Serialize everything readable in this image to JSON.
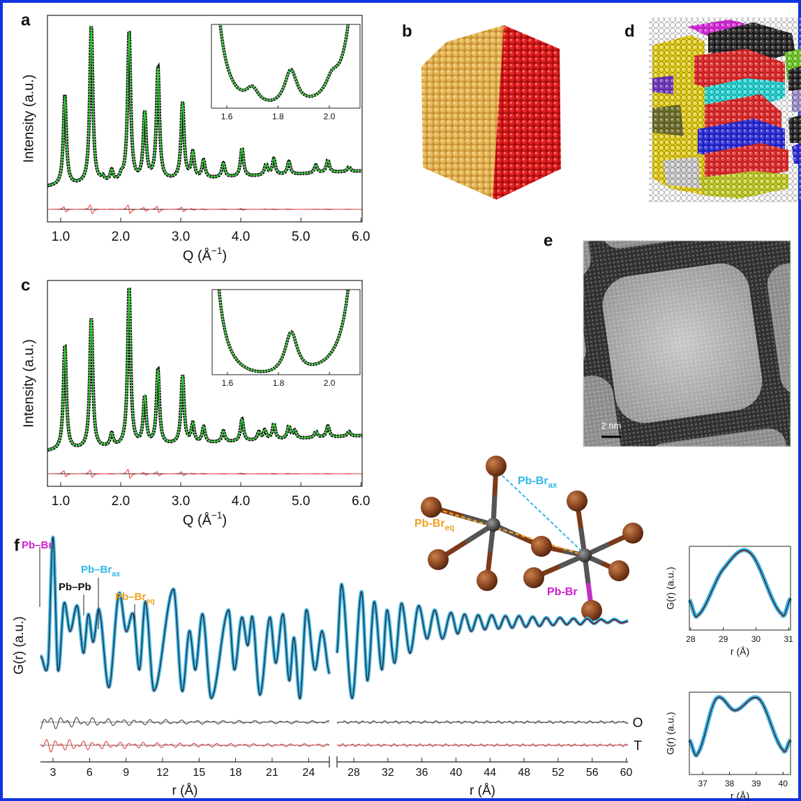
{
  "panels": {
    "a": {
      "label": "a",
      "ylabel": "Intensity (a.u.)",
      "xlabel": {
        "text": "Q (Å",
        "sup": "−1",
        "close": ")"
      },
      "xlim": [
        0.78,
        6.02
      ],
      "ylim": [
        0,
        1.3
      ],
      "xticks": [
        {
          "value": 1,
          "label": "1.0"
        },
        {
          "value": 2,
          "label": "2.0"
        },
        {
          "value": 3,
          "label": "3.0"
        },
        {
          "value": 4,
          "label": "4.0"
        },
        {
          "value": 5,
          "label": "5.0"
        },
        {
          "value": 6,
          "label": "6.0"
        }
      ],
      "background": [
        0.22,
        0.32
      ],
      "peak_width": 0.03,
      "peaks": [
        [
          1.07,
          0.56
        ],
        [
          1.51,
          0.99
        ],
        [
          1.7,
          0.03
        ],
        [
          1.85,
          0.07
        ],
        [
          2.01,
          0.03
        ],
        [
          2.14,
          0.94
        ],
        [
          2.4,
          0.42
        ],
        [
          2.62,
          0.7
        ],
        [
          3.03,
          0.48
        ],
        [
          3.2,
          0.16
        ],
        [
          3.38,
          0.11
        ],
        [
          3.71,
          0.09
        ],
        [
          4.02,
          0.18
        ],
        [
          4.42,
          0.07
        ],
        [
          4.55,
          0.1
        ],
        [
          4.8,
          0.08
        ],
        [
          5.25,
          0.05
        ],
        [
          5.45,
          0.08
        ],
        [
          5.8,
          0.03
        ]
      ],
      "inset": {
        "xlim": [
          1.54,
          2.12
        ],
        "ylim": [
          0.26,
          0.42
        ],
        "xticks": [
          {
            "value": 1.6,
            "label": "1.6"
          },
          {
            "value": 1.8,
            "label": "1.8"
          },
          {
            "value": 2,
            "label": "2.0"
          }
        ]
      }
    },
    "b": {
      "label": "b"
    },
    "c": {
      "label": "c",
      "ylabel": "Intensity (a.u.)",
      "xlabel": {
        "text": "Q (Å",
        "sup": "−1",
        "close": ")"
      },
      "xlim": [
        0.78,
        6.02
      ],
      "ylim": [
        0,
        1.3
      ],
      "xticks": [
        {
          "value": 1,
          "label": "1.0"
        },
        {
          "value": 2,
          "label": "2.0"
        },
        {
          "value": 3,
          "label": "3.0"
        },
        {
          "value": 4,
          "label": "4.0"
        },
        {
          "value": 5,
          "label": "5.0"
        },
        {
          "value": 6,
          "label": "6.0"
        }
      ],
      "background": [
        0.22,
        0.32
      ],
      "peak_width": 0.03,
      "peaks": [
        [
          1.07,
          0.66
        ],
        [
          1.51,
          0.82
        ],
        [
          1.85,
          0.08
        ],
        [
          2.14,
          1.0
        ],
        [
          2.4,
          0.3
        ],
        [
          2.62,
          0.47
        ],
        [
          3.03,
          0.43
        ],
        [
          3.2,
          0.12
        ],
        [
          3.38,
          0.1
        ],
        [
          3.71,
          0.07
        ],
        [
          4.02,
          0.14
        ],
        [
          4.3,
          0.05
        ],
        [
          4.4,
          0.06
        ],
        [
          4.55,
          0.1
        ],
        [
          4.8,
          0.08
        ],
        [
          4.9,
          0.05
        ],
        [
          5.25,
          0.04
        ],
        [
          5.45,
          0.07
        ],
        [
          5.8,
          0.03
        ]
      ],
      "inset": {
        "xlim": [
          1.54,
          2.12
        ],
        "ylim": [
          0.26,
          0.42
        ],
        "xticks": [
          {
            "value": 1.6,
            "label": "1.6"
          },
          {
            "value": 1.8,
            "label": "1.8"
          },
          {
            "value": 2,
            "label": "2.0"
          }
        ]
      }
    },
    "d": {
      "label": "d"
    },
    "e": {
      "label": "e",
      "scale_bar": "2 nm"
    },
    "structure": {
      "labels": [
        {
          "text": "Pb-Br",
          "sub": "ax"
        },
        {
          "text": "Pb-Br",
          "sub": "eq"
        },
        {
          "text": "Pb-Br"
        }
      ]
    },
    "f": {
      "label": "f",
      "ylabel": "G(r) (a.u.)",
      "xlabel": "r (Å)",
      "ylim": [
        -1.7,
        1.1
      ],
      "annotations": [
        {
          "text": "Pb–Br"
        },
        {
          "text": "Pb–Pb"
        },
        {
          "text": "Pb–Br",
          "sub": "ax"
        },
        {
          "text": "Pb–Br",
          "sub": "eq"
        }
      ],
      "difference_labels": [
        "O",
        "T"
      ],
      "left": {
        "xlim": [
          1.97,
          25.7
        ],
        "xticks": [
          3,
          6,
          9,
          12,
          15,
          18,
          21,
          24
        ],
        "points": [
          [
            2.0,
            -0.42
          ],
          [
            2.6,
            -0.5
          ],
          [
            3.0,
            1.0
          ],
          [
            3.4,
            -0.58
          ],
          [
            3.9,
            0.21
          ],
          [
            4.4,
            -0.12
          ],
          [
            5.0,
            0.18
          ],
          [
            5.5,
            -0.38
          ],
          [
            5.9,
            0.08
          ],
          [
            6.3,
            -0.25
          ],
          [
            6.8,
            0.13
          ],
          [
            7.6,
            -0.79
          ],
          [
            8.4,
            0.32
          ],
          [
            9.0,
            -0.12
          ],
          [
            9.6,
            0.08
          ],
          [
            10.1,
            -0.58
          ],
          [
            10.6,
            0.23
          ],
          [
            11.3,
            -0.83
          ],
          [
            12.9,
            0.38
          ],
          [
            13.6,
            -0.83
          ],
          [
            14.2,
            -0.12
          ],
          [
            14.7,
            -0.58
          ],
          [
            15.3,
            0.08
          ],
          [
            16.0,
            -0.92
          ],
          [
            17.4,
            0.13
          ],
          [
            17.9,
            -0.58
          ],
          [
            18.5,
            0.04
          ],
          [
            19.0,
            -0.29
          ],
          [
            19.4,
            0.04
          ],
          [
            20.0,
            -0.88
          ],
          [
            20.8,
            0.04
          ],
          [
            21.3,
            -0.5
          ],
          [
            21.9,
            0.08
          ],
          [
            22.4,
            -0.71
          ],
          [
            22.8,
            -0.2
          ],
          [
            23.3,
            -0.92
          ],
          [
            23.8,
            0.13
          ],
          [
            24.5,
            -0.58
          ],
          [
            25.1,
            -0.12
          ],
          [
            25.7,
            -0.63
          ]
        ]
      },
      "right": {
        "xlim": [
          26.03,
          60.2
        ],
        "xticks": [
          28,
          32,
          36,
          40,
          44,
          48,
          52,
          56,
          60
        ],
        "points": [
          [
            26.03,
            -0.38
          ],
          [
            26.6,
            0.43
          ],
          [
            27.8,
            -0.92
          ],
          [
            28.9,
            0.35
          ],
          [
            29.6,
            -0.71
          ],
          [
            30.4,
            0.23
          ],
          [
            31.3,
            -0.58
          ],
          [
            31.9,
            0.13
          ],
          [
            32.8,
            -0.5
          ],
          [
            33.6,
            0.21
          ],
          [
            34.6,
            -0.38
          ],
          [
            35.6,
            0.18
          ],
          [
            36.6,
            -0.21
          ],
          [
            37.5,
            0.13
          ],
          [
            38.4,
            -0.21
          ],
          [
            39.4,
            0.1
          ],
          [
            40.2,
            -0.15
          ],
          [
            41.0,
            0.08
          ],
          [
            41.8,
            -0.12
          ],
          [
            42.6,
            0.07
          ],
          [
            43.4,
            -0.1
          ],
          [
            44.2,
            0.07
          ],
          [
            45.0,
            -0.09
          ],
          [
            45.8,
            0.06
          ],
          [
            46.6,
            -0.08
          ],
          [
            47.4,
            0.06
          ],
          [
            48.2,
            -0.07
          ],
          [
            49.0,
            0.05
          ],
          [
            49.8,
            -0.06
          ],
          [
            50.6,
            0.04
          ],
          [
            51.4,
            -0.05
          ],
          [
            52.2,
            0.04
          ],
          [
            53.0,
            -0.04
          ],
          [
            53.8,
            0.03
          ],
          [
            54.6,
            -0.04
          ],
          [
            55.4,
            0.03
          ],
          [
            56.2,
            -0.03
          ],
          [
            57.0,
            0.02
          ],
          [
            57.8,
            -0.02
          ],
          [
            58.6,
            0.02
          ],
          [
            59.4,
            -0.02
          ],
          [
            60.2,
            0
          ]
        ]
      },
      "insets": [
        {
          "xlim": [
            27.96,
            31.06
          ],
          "ylim": [
            0,
            1
          ],
          "xticks": [
            28,
            29,
            30,
            31
          ],
          "ylabel": "G(r) (a.u.)",
          "xlabel": "r (Å)",
          "points": [
            [
              27.96,
              0.36
            ],
            [
              28.2,
              0.17
            ],
            [
              29.0,
              0.73
            ],
            [
              29.8,
              0.93
            ],
            [
              30.8,
              0.19
            ],
            [
              31.06,
              0.38
            ]
          ]
        },
        {
          "xlim": [
            36.5,
            40.28
          ],
          "ylim": [
            0,
            1
          ],
          "xticks": [
            37,
            38,
            39,
            40
          ],
          "ylabel": "G(r) (a.u.)",
          "xlabel": "r (Å)",
          "points": [
            [
              36.5,
              0.42
            ],
            [
              36.8,
              0.25
            ],
            [
              37.5,
              0.92
            ],
            [
              38.2,
              0.78
            ],
            [
              39.1,
              0.92
            ],
            [
              40.0,
              0.3
            ],
            [
              40.28,
              0.42
            ]
          ]
        }
      ]
    }
  }
}
